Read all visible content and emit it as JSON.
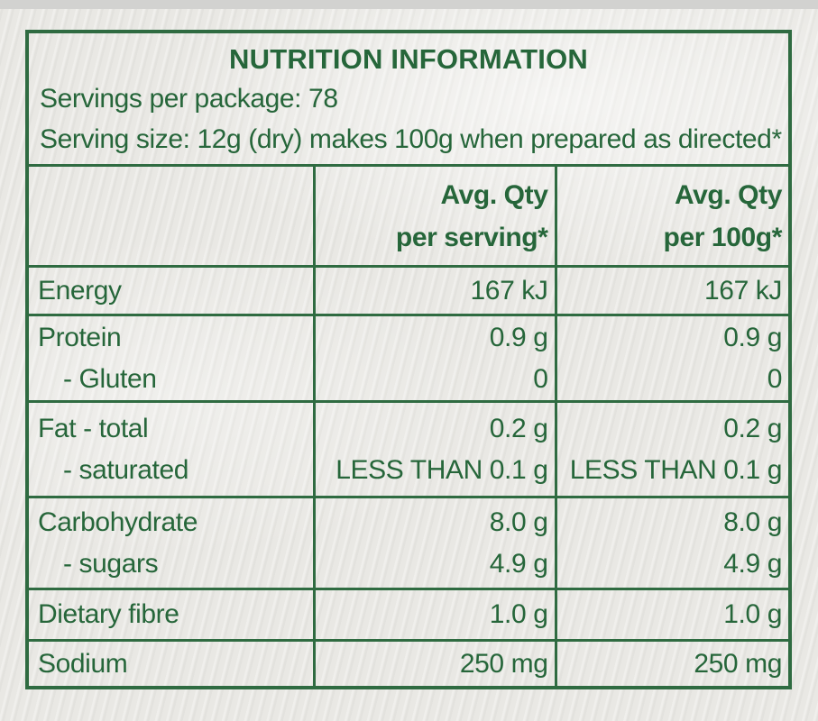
{
  "colors": {
    "text_green": "#26663a",
    "border_green": "#2f6b41",
    "paper_background": "#e9e8e4"
  },
  "header": {
    "title": "NUTRITION INFORMATION",
    "servings_line": "Servings per package: 78",
    "serving_size_line": "Serving size: 12g (dry) makes 100g when prepared as directed*"
  },
  "columns": {
    "serving": [
      "Avg. Qty",
      "per serving*"
    ],
    "per100": [
      "Avg. Qty",
      "per 100g*"
    ]
  },
  "rows": [
    {
      "lines": [
        {
          "label": "Energy",
          "serving": "167 kJ",
          "per100": "167 kJ"
        }
      ]
    },
    {
      "lines": [
        {
          "label": "Protein",
          "serving": "0.9 g",
          "per100": "0.9 g"
        },
        {
          "label": "- Gluten",
          "serving": "0",
          "per100": "0"
        }
      ]
    },
    {
      "lines": [
        {
          "label": "Fat - total",
          "serving": "0.2 g",
          "per100": "0.2 g"
        },
        {
          "label": "- saturated",
          "serving": "LESS THAN 0.1 g",
          "per100": "LESS THAN 0.1 g"
        }
      ]
    },
    {
      "lines": [
        {
          "label": "Carbohydrate",
          "serving": "8.0 g",
          "per100": "8.0 g"
        },
        {
          "label": "- sugars",
          "serving": "4.9 g",
          "per100": "4.9 g"
        }
      ]
    },
    {
      "lines": [
        {
          "label": "Dietary fibre",
          "serving": "1.0 g",
          "per100": "1.0 g"
        }
      ]
    },
    {
      "lines": [
        {
          "label": "Sodium",
          "serving": "250 mg",
          "per100": "250 mg"
        }
      ]
    }
  ]
}
